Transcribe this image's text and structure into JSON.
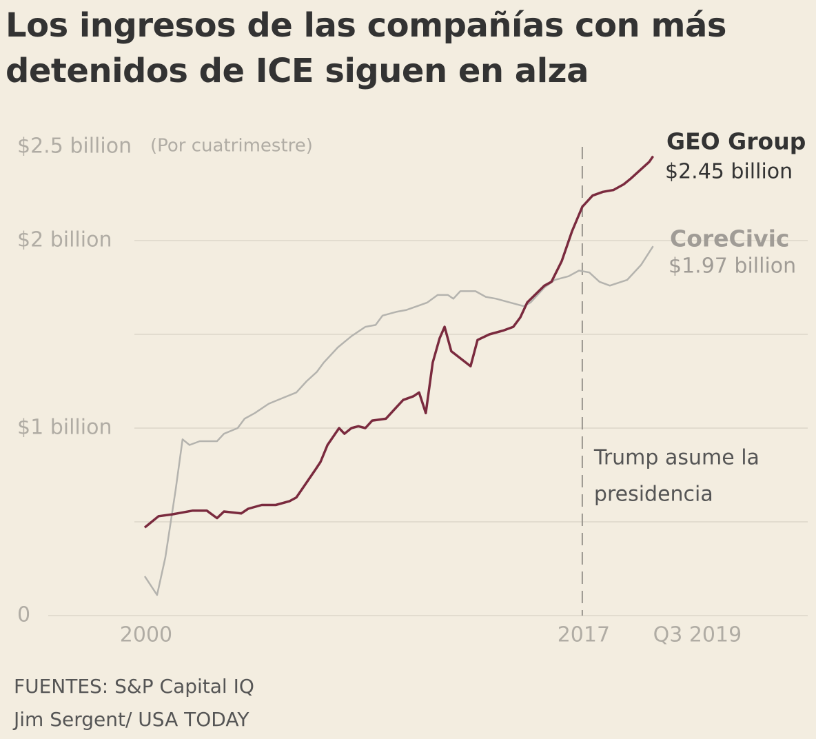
{
  "chart_data": {
    "type": "line",
    "title": "Los ingresos de las compañías con más detenidos de ICE siguen en alza",
    "y_unit_note": "(Por cuatrimestre)",
    "xlim": [
      1999.5,
      2025
    ],
    "xticks": [
      2000,
      2017,
      {
        "value": 2019.75,
        "label": "Q3 2019"
      }
    ],
    "ylim": [
      0,
      2.5
    ],
    "yticks": [
      0,
      {
        "value": 1,
        "label": "$1 billion"
      },
      {
        "value": 2,
        "label": "$2 billion"
      },
      {
        "value": 2.5,
        "label": "$2.5 billion"
      }
    ],
    "ygrid": [
      0,
      0.5,
      1,
      1.5,
      2
    ],
    "grid": true,
    "series": [
      {
        "name": "GEO Group",
        "color": "#7a2a3e",
        "end_label": "$2.45 billion",
        "x": [
          2000,
          2000.54,
          2001.07,
          2001.87,
          2002.41,
          2002.81,
          2003.08,
          2003.75,
          2004.02,
          2004.55,
          2005.09,
          2005.62,
          2005.89,
          2006.29,
          2006.64,
          2006.83,
          2007.1,
          2007.55,
          2007.76,
          2008.03,
          2008.3,
          2008.57,
          2008.84,
          2009.37,
          2009.77,
          2010.04,
          2010.44,
          2010.66,
          2010.92,
          2011.19,
          2011.46,
          2011.65,
          2011.91,
          2012.66,
          2012.93,
          2013.39,
          2013.92,
          2014.32,
          2014.59,
          2014.86,
          2015.53,
          2015.8,
          2016.2,
          2016.6,
          2017,
          2017.4,
          2017.8,
          2018.21,
          2018.61,
          2018.88,
          2019.28,
          2019.6,
          2019.75
        ],
        "values": [
          0.47,
          0.53,
          0.54,
          0.56,
          0.56,
          0.52,
          0.555,
          0.545,
          0.57,
          0.59,
          0.59,
          0.61,
          0.63,
          0.71,
          0.78,
          0.82,
          0.91,
          1.0,
          0.97,
          1.0,
          1.01,
          1.0,
          1.04,
          1.05,
          1.11,
          1.15,
          1.17,
          1.19,
          1.08,
          1.35,
          1.48,
          1.54,
          1.41,
          1.33,
          1.47,
          1.5,
          1.52,
          1.54,
          1.59,
          1.67,
          1.76,
          1.78,
          1.89,
          2.05,
          2.18,
          2.24,
          2.26,
          2.27,
          2.3,
          2.33,
          2.38,
          2.42,
          2.45
        ]
      },
      {
        "name": "CoreCivic",
        "color": "#b4b3ae",
        "end_label": "$1.97 billion",
        "x": [
          2000,
          2000.48,
          2000.8,
          2001.2,
          2001.47,
          2001.74,
          2002.14,
          2002.81,
          2003.08,
          2003.61,
          2003.88,
          2004.28,
          2004.82,
          2005.35,
          2005.89,
          2006.29,
          2006.69,
          2006.96,
          2007.5,
          2008.03,
          2008.57,
          2008.97,
          2009.24,
          2009.77,
          2010.17,
          2010.58,
          2010.98,
          2011.38,
          2011.78,
          2011.99,
          2012.26,
          2012.85,
          2013.25,
          2013.65,
          2014.19,
          2014.73,
          2014.99,
          2015.53,
          2015.93,
          2016.47,
          2016.87,
          2017.27,
          2017.67,
          2018.07,
          2018.74,
          2019.28,
          2019.75
        ],
        "values": [
          0.21,
          0.11,
          0.31,
          0.67,
          0.94,
          0.91,
          0.93,
          0.93,
          0.97,
          1.0,
          1.05,
          1.08,
          1.13,
          1.16,
          1.19,
          1.25,
          1.3,
          1.35,
          1.43,
          1.49,
          1.54,
          1.55,
          1.6,
          1.62,
          1.63,
          1.65,
          1.67,
          1.71,
          1.71,
          1.69,
          1.73,
          1.73,
          1.7,
          1.69,
          1.67,
          1.65,
          1.67,
          1.75,
          1.79,
          1.81,
          1.84,
          1.83,
          1.78,
          1.76,
          1.79,
          1.87,
          1.97
        ]
      }
    ],
    "annotation": {
      "x": 2017,
      "lines": [
        "Trump asume la",
        "presidencia"
      ]
    },
    "sources": [
      "FUENTES: S&P Capital IQ",
      "Jim Sergent/ USA TODAY"
    ]
  }
}
